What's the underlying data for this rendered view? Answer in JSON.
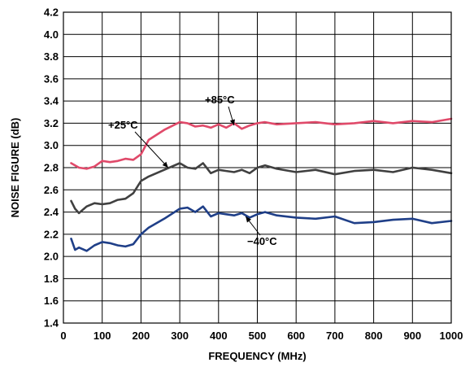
{
  "chart_data": {
    "type": "line",
    "xlabel": "FREQUENCY (MHz)",
    "ylabel": "NOISE FIGURE (dB)",
    "xlim": [
      0,
      1000
    ],
    "ylim": [
      1.4,
      4.2
    ],
    "x_ticks": [
      0,
      100,
      200,
      300,
      400,
      500,
      600,
      700,
      800,
      900,
      1000
    ],
    "y_ticks": [
      "1.4",
      "1.6",
      "1.8",
      "2.0",
      "2.2",
      "2.4",
      "2.6",
      "2.8",
      "3.0",
      "3.2",
      "3.4",
      "3.6",
      "3.8",
      "4.0",
      "4.2"
    ],
    "grid": true,
    "series": [
      {
        "name": "+85°C",
        "color": "#e04a6a",
        "x": [
          20,
          40,
          60,
          80,
          100,
          120,
          140,
          160,
          180,
          200,
          220,
          260,
          300,
          320,
          340,
          360,
          380,
          400,
          420,
          440,
          460,
          480,
          500,
          520,
          550,
          600,
          650,
          700,
          750,
          800,
          850,
          900,
          950,
          1000
        ],
        "y": [
          2.84,
          2.8,
          2.79,
          2.81,
          2.86,
          2.85,
          2.86,
          2.88,
          2.87,
          2.92,
          3.05,
          3.14,
          3.21,
          3.2,
          3.17,
          3.18,
          3.16,
          3.19,
          3.16,
          3.2,
          3.15,
          3.18,
          3.2,
          3.21,
          3.19,
          3.2,
          3.21,
          3.19,
          3.2,
          3.22,
          3.2,
          3.22,
          3.21,
          3.24
        ]
      },
      {
        "name": "+25°C",
        "color": "#404040",
        "x": [
          20,
          30,
          40,
          60,
          80,
          100,
          120,
          140,
          160,
          180,
          200,
          220,
          260,
          300,
          320,
          340,
          360,
          380,
          400,
          420,
          440,
          460,
          480,
          500,
          520,
          550,
          600,
          650,
          700,
          750,
          800,
          850,
          900,
          950,
          1000
        ],
        "y": [
          2.5,
          2.43,
          2.39,
          2.45,
          2.48,
          2.47,
          2.48,
          2.51,
          2.52,
          2.57,
          2.68,
          2.72,
          2.78,
          2.84,
          2.8,
          2.79,
          2.84,
          2.75,
          2.78,
          2.77,
          2.76,
          2.78,
          2.75,
          2.8,
          2.82,
          2.79,
          2.76,
          2.78,
          2.74,
          2.77,
          2.78,
          2.76,
          2.8,
          2.78,
          2.75
        ]
      },
      {
        "name": "−40°C",
        "color": "#1f3f88",
        "x": [
          20,
          30,
          40,
          60,
          80,
          100,
          120,
          140,
          160,
          180,
          200,
          220,
          260,
          300,
          320,
          340,
          360,
          380,
          400,
          420,
          440,
          460,
          480,
          500,
          520,
          550,
          600,
          650,
          700,
          750,
          800,
          850,
          900,
          950,
          1000
        ],
        "y": [
          2.16,
          2.06,
          2.08,
          2.05,
          2.1,
          2.13,
          2.12,
          2.1,
          2.09,
          2.11,
          2.2,
          2.26,
          2.34,
          2.43,
          2.44,
          2.4,
          2.45,
          2.36,
          2.39,
          2.38,
          2.37,
          2.39,
          2.35,
          2.38,
          2.4,
          2.37,
          2.35,
          2.34,
          2.36,
          2.3,
          2.31,
          2.33,
          2.34,
          2.3,
          2.32
        ]
      }
    ],
    "annotations": [
      {
        "text": "+85°C",
        "series": 0,
        "x": 440,
        "y": 3.18
      },
      {
        "text": "+25°C",
        "series": 1,
        "x": 270,
        "y": 2.8
      },
      {
        "text": "−40°C",
        "series": 2,
        "x": 470,
        "y": 2.36
      }
    ]
  }
}
